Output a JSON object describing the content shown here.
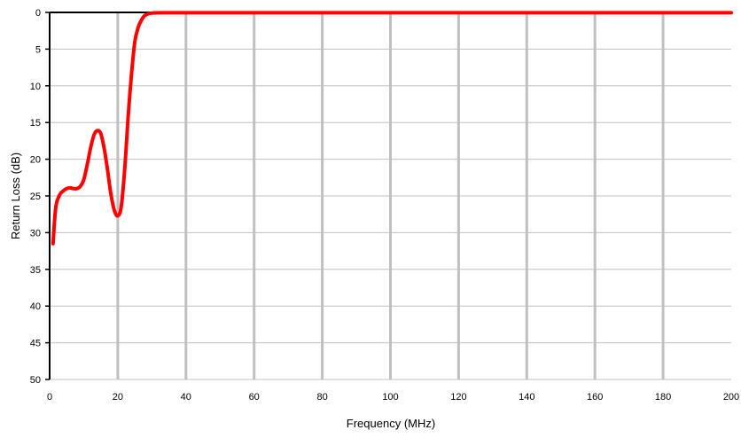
{
  "chart_data": {
    "type": "line",
    "title": "",
    "xlabel": "Frequency (MHz)",
    "ylabel": "Return Loss (dB)",
    "xlim": [
      0,
      200
    ],
    "ylim": [
      0,
      50
    ],
    "y_axis_inverted": true,
    "xticks": [
      0,
      20,
      40,
      60,
      80,
      100,
      120,
      140,
      160,
      180,
      200
    ],
    "yticks": [
      0,
      5,
      10,
      15,
      20,
      25,
      30,
      35,
      40,
      45,
      50
    ],
    "vertical_grid": true,
    "horizontal_grid": true,
    "legend": "none",
    "series": [
      {
        "color": "#ff0000",
        "x": [
          1,
          1.5,
          2,
          3,
          4,
          5,
          6,
          7,
          8,
          9,
          10,
          11,
          12,
          13,
          14,
          15,
          16,
          17,
          18,
          19,
          20,
          21,
          22,
          23,
          24,
          25,
          26,
          27,
          28,
          30,
          35,
          40,
          60,
          80,
          100,
          120,
          140,
          160,
          180,
          200
        ],
        "y": [
          31.5,
          28,
          26,
          24.8,
          24.3,
          24.0,
          23.9,
          24.0,
          24.0,
          23.7,
          22.8,
          20.8,
          18.5,
          16.7,
          16.1,
          16.5,
          18.5,
          21.5,
          24.8,
          27.0,
          27.7,
          26.5,
          21.5,
          14.5,
          8.5,
          4.0,
          2.0,
          1.0,
          0.4,
          0.1,
          0.05,
          0.05,
          0.05,
          0.05,
          0.05,
          0.05,
          0.05,
          0.05,
          0.05,
          0.05
        ]
      }
    ]
  }
}
